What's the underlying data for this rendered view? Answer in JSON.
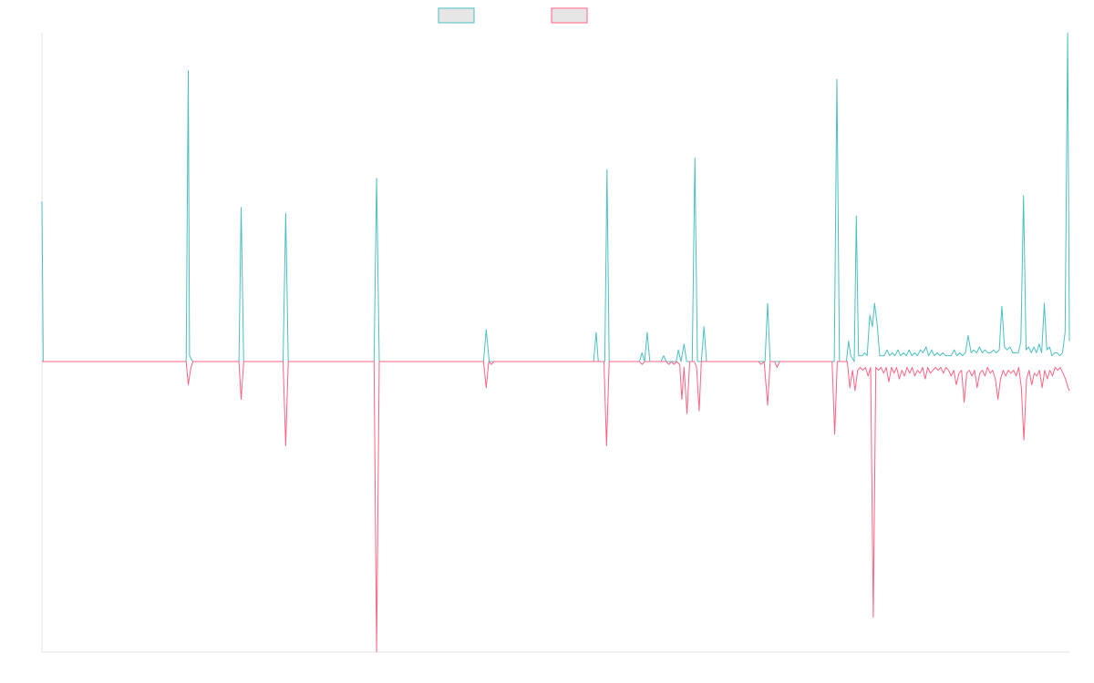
{
  "chart_data": {
    "type": "line",
    "title": "",
    "xlabel": "",
    "ylabel": "",
    "grid": false,
    "legend": {
      "position": "top-center",
      "items": [
        {
          "label": "",
          "color": "#4BC0C0"
        },
        {
          "label": "",
          "color": "#FF6384"
        }
      ]
    },
    "ylim": [
      -1.0,
      1.0
    ],
    "series": [
      {
        "name": "",
        "color": "#4BC0C0",
        "points": [
          [
            0,
            0.55
          ],
          [
            0.3,
            0.0
          ],
          [
            33.3,
            0.0
          ],
          [
            33.8,
            1.0
          ],
          [
            34.1,
            0.02
          ],
          [
            34.8,
            0.0
          ],
          [
            45.5,
            0.0
          ],
          [
            46.0,
            0.53
          ],
          [
            46.6,
            0.0
          ],
          [
            55.7,
            0.0
          ],
          [
            56.3,
            0.51
          ],
          [
            56.9,
            0.0
          ],
          [
            76.7,
            0.0
          ],
          [
            77.3,
            0.63
          ],
          [
            77.9,
            0.0
          ],
          [
            102.0,
            0.0
          ],
          [
            102.6,
            0.11
          ],
          [
            103.3,
            0.0
          ],
          [
            127.4,
            0.0
          ],
          [
            128.0,
            0.1
          ],
          [
            128.5,
            0.0
          ],
          [
            130.0,
            0.0
          ],
          [
            130.5,
            0.66
          ],
          [
            131.0,
            0.0
          ],
          [
            138.0,
            0.0
          ],
          [
            138.6,
            0.03
          ],
          [
            139.2,
            0.0
          ],
          [
            139.8,
            0.1
          ],
          [
            140.4,
            0.0
          ],
          [
            143.0,
            0.0
          ],
          [
            143.6,
            0.02
          ],
          [
            144.2,
            0.0
          ],
          [
            146.5,
            0.0
          ],
          [
            147.0,
            0.04
          ],
          [
            147.6,
            0.0
          ],
          [
            148.3,
            0.06
          ],
          [
            148.9,
            0.0
          ],
          [
            150.2,
            0.0
          ],
          [
            150.8,
            0.7
          ],
          [
            151.4,
            0.0
          ],
          [
            152.3,
            0.0
          ],
          [
            152.9,
            0.12
          ],
          [
            153.5,
            0.0
          ],
          [
            167.0,
            0.0
          ],
          [
            167.6,
            0.2
          ],
          [
            168.2,
            0.0
          ],
          [
            183.0,
            0.0
          ],
          [
            183.6,
            0.97
          ],
          [
            184.2,
            0.0
          ],
          [
            185.8,
            0.0
          ],
          [
            186.3,
            0.07
          ],
          [
            186.8,
            0.02
          ],
          [
            187.6,
            0.0
          ],
          [
            188.1,
            0.5
          ],
          [
            188.6,
            0.02
          ],
          [
            189.5,
            0.02
          ],
          [
            190.0,
            0.03
          ],
          [
            190.6,
            0.02
          ],
          [
            191.2,
            0.16
          ],
          [
            191.8,
            0.12
          ],
          [
            192.3,
            0.2
          ],
          [
            192.9,
            0.13
          ],
          [
            193.5,
            0.02
          ],
          [
            194.5,
            0.02
          ],
          [
            195.2,
            0.04
          ],
          [
            195.8,
            0.02
          ],
          [
            196.4,
            0.03
          ],
          [
            197.0,
            0.02
          ],
          [
            197.7,
            0.04
          ],
          [
            198.3,
            0.02
          ],
          [
            199.0,
            0.03
          ],
          [
            199.6,
            0.02
          ],
          [
            200.3,
            0.04
          ],
          [
            200.9,
            0.02
          ],
          [
            201.6,
            0.03
          ],
          [
            202.2,
            0.02
          ],
          [
            202.9,
            0.04
          ],
          [
            203.5,
            0.03
          ],
          [
            204.2,
            0.05
          ],
          [
            204.8,
            0.02
          ],
          [
            205.5,
            0.04
          ],
          [
            206.1,
            0.02
          ],
          [
            206.8,
            0.03
          ],
          [
            207.4,
            0.02
          ],
          [
            208.1,
            0.03
          ],
          [
            208.7,
            0.02
          ],
          [
            209.4,
            0.02
          ],
          [
            210.0,
            0.02
          ],
          [
            210.7,
            0.04
          ],
          [
            211.3,
            0.02
          ],
          [
            212.0,
            0.03
          ],
          [
            212.6,
            0.02
          ],
          [
            213.3,
            0.03
          ],
          [
            213.9,
            0.09
          ],
          [
            214.6,
            0.03
          ],
          [
            215.2,
            0.04
          ],
          [
            215.9,
            0.03
          ],
          [
            216.5,
            0.05
          ],
          [
            217.2,
            0.03
          ],
          [
            217.8,
            0.04
          ],
          [
            218.5,
            0.03
          ],
          [
            219.1,
            0.03
          ],
          [
            219.8,
            0.04
          ],
          [
            220.4,
            0.03
          ],
          [
            221.1,
            0.04
          ],
          [
            221.7,
            0.19
          ],
          [
            222.3,
            0.05
          ],
          [
            222.9,
            0.04
          ],
          [
            223.6,
            0.05
          ],
          [
            224.2,
            0.03
          ],
          [
            224.9,
            0.03
          ],
          [
            225.5,
            0.03
          ],
          [
            226.1,
            0.07
          ],
          [
            226.7,
            0.57
          ],
          [
            227.3,
            0.04
          ],
          [
            227.9,
            0.05
          ],
          [
            228.5,
            0.03
          ],
          [
            229.1,
            0.05
          ],
          [
            229.7,
            0.03
          ],
          [
            230.3,
            0.06
          ],
          [
            230.9,
            0.03
          ],
          [
            231.5,
            0.2
          ],
          [
            232.1,
            0.04
          ],
          [
            232.7,
            0.05
          ],
          [
            233.3,
            0.02
          ],
          [
            233.9,
            0.03
          ],
          [
            234.5,
            0.03
          ],
          [
            235.1,
            0.02
          ],
          [
            235.7,
            0.03
          ],
          [
            236.3,
            0.1
          ],
          [
            236.9,
            1.13
          ],
          [
            237.3,
            0.07
          ]
        ]
      },
      {
        "name": "",
        "color": "#FF6384",
        "points": [
          [
            0,
            0.0
          ],
          [
            33.3,
            0.0
          ],
          [
            33.8,
            -0.08
          ],
          [
            34.4,
            -0.02
          ],
          [
            34.9,
            0.0
          ],
          [
            45.5,
            0.0
          ],
          [
            46.0,
            -0.13
          ],
          [
            46.6,
            0.0
          ],
          [
            55.7,
            0.0
          ],
          [
            56.3,
            -0.29
          ],
          [
            56.9,
            0.0
          ],
          [
            76.7,
            0.0
          ],
          [
            77.3,
            -1.0
          ],
          [
            77.9,
            0.0
          ],
          [
            102.0,
            0.0
          ],
          [
            102.6,
            -0.09
          ],
          [
            103.2,
            0.0
          ],
          [
            103.8,
            -0.01
          ],
          [
            104.4,
            0.0
          ],
          [
            129.8,
            0.0
          ],
          [
            130.4,
            -0.29
          ],
          [
            131.0,
            0.0
          ],
          [
            138.0,
            0.0
          ],
          [
            138.6,
            -0.01
          ],
          [
            139.2,
            0.0
          ],
          [
            144.2,
            0.0
          ],
          [
            144.8,
            -0.01
          ],
          [
            145.4,
            0.0
          ],
          [
            146.0,
            -0.01
          ],
          [
            146.6,
            0.0
          ],
          [
            147.3,
            -0.01
          ],
          [
            147.8,
            -0.13
          ],
          [
            148.3,
            -0.02
          ],
          [
            149.0,
            -0.18
          ],
          [
            149.6,
            0.0
          ],
          [
            150.7,
            0.0
          ],
          [
            151.2,
            -0.02
          ],
          [
            151.8,
            -0.17
          ],
          [
            152.3,
            0.0
          ],
          [
            165.5,
            0.0
          ],
          [
            166.1,
            -0.01
          ],
          [
            166.8,
            0.0
          ],
          [
            167.6,
            -0.15
          ],
          [
            168.2,
            0.0
          ],
          [
            169.2,
            0.0
          ],
          [
            169.8,
            -0.02
          ],
          [
            170.4,
            0.0
          ],
          [
            182.5,
            0.0
          ],
          [
            183.1,
            -0.25
          ],
          [
            183.7,
            0.0
          ],
          [
            186.0,
            0.0
          ],
          [
            186.6,
            -0.09
          ],
          [
            187.2,
            -0.03
          ],
          [
            187.8,
            -0.1
          ],
          [
            188.4,
            -0.03
          ],
          [
            189.0,
            -0.02
          ],
          [
            189.6,
            -0.03
          ],
          [
            190.2,
            -0.02
          ],
          [
            190.8,
            -0.05
          ],
          [
            191.4,
            -0.02
          ],
          [
            192.0,
            -0.88
          ],
          [
            192.6,
            -0.02
          ],
          [
            193.2,
            -0.03
          ],
          [
            193.8,
            -0.02
          ],
          [
            194.4,
            -0.04
          ],
          [
            195.0,
            -0.02
          ],
          [
            195.6,
            -0.07
          ],
          [
            196.2,
            -0.02
          ],
          [
            196.8,
            -0.04
          ],
          [
            197.4,
            -0.02
          ],
          [
            198.0,
            -0.06
          ],
          [
            198.6,
            -0.03
          ],
          [
            199.2,
            -0.05
          ],
          [
            199.8,
            -0.02
          ],
          [
            200.4,
            -0.04
          ],
          [
            201.0,
            -0.02
          ],
          [
            201.6,
            -0.05
          ],
          [
            202.2,
            -0.03
          ],
          [
            202.8,
            -0.04
          ],
          [
            203.4,
            -0.02
          ],
          [
            204.0,
            -0.06
          ],
          [
            204.6,
            -0.02
          ],
          [
            205.2,
            -0.04
          ],
          [
            205.8,
            -0.03
          ],
          [
            206.4,
            -0.02
          ],
          [
            207.0,
            -0.03
          ],
          [
            207.6,
            -0.02
          ],
          [
            208.2,
            -0.04
          ],
          [
            208.8,
            -0.02
          ],
          [
            209.4,
            -0.03
          ],
          [
            210.0,
            -0.05
          ],
          [
            210.6,
            -0.03
          ],
          [
            211.2,
            -0.08
          ],
          [
            211.8,
            -0.04
          ],
          [
            212.4,
            -0.03
          ],
          [
            213.0,
            -0.14
          ],
          [
            213.6,
            -0.04
          ],
          [
            214.2,
            -0.03
          ],
          [
            214.8,
            -0.05
          ],
          [
            215.4,
            -0.03
          ],
          [
            216.0,
            -0.09
          ],
          [
            216.6,
            -0.04
          ],
          [
            217.2,
            -0.03
          ],
          [
            217.8,
            -0.05
          ],
          [
            218.4,
            -0.02
          ],
          [
            219.0,
            -0.04
          ],
          [
            219.6,
            -0.03
          ],
          [
            220.2,
            -0.06
          ],
          [
            220.8,
            -0.13
          ],
          [
            221.4,
            -0.06
          ],
          [
            222.0,
            -0.03
          ],
          [
            222.6,
            -0.05
          ],
          [
            223.2,
            -0.03
          ],
          [
            223.8,
            -0.04
          ],
          [
            224.4,
            -0.03
          ],
          [
            225.0,
            -0.05
          ],
          [
            225.6,
            -0.02
          ],
          [
            226.2,
            -0.09
          ],
          [
            226.8,
            -0.27
          ],
          [
            227.4,
            -0.06
          ],
          [
            228.0,
            -0.03
          ],
          [
            228.6,
            -0.08
          ],
          [
            229.2,
            -0.04
          ],
          [
            229.8,
            -0.05
          ],
          [
            230.4,
            -0.03
          ],
          [
            231.0,
            -0.09
          ],
          [
            231.6,
            -0.03
          ],
          [
            232.2,
            -0.06
          ],
          [
            232.8,
            -0.03
          ],
          [
            233.4,
            -0.05
          ],
          [
            234.0,
            -0.02
          ],
          [
            234.6,
            -0.03
          ],
          [
            235.2,
            -0.02
          ],
          [
            235.8,
            -0.04
          ],
          [
            236.4,
            -0.06
          ],
          [
            237.0,
            -0.09
          ],
          [
            237.3,
            -0.1
          ]
        ]
      }
    ]
  }
}
